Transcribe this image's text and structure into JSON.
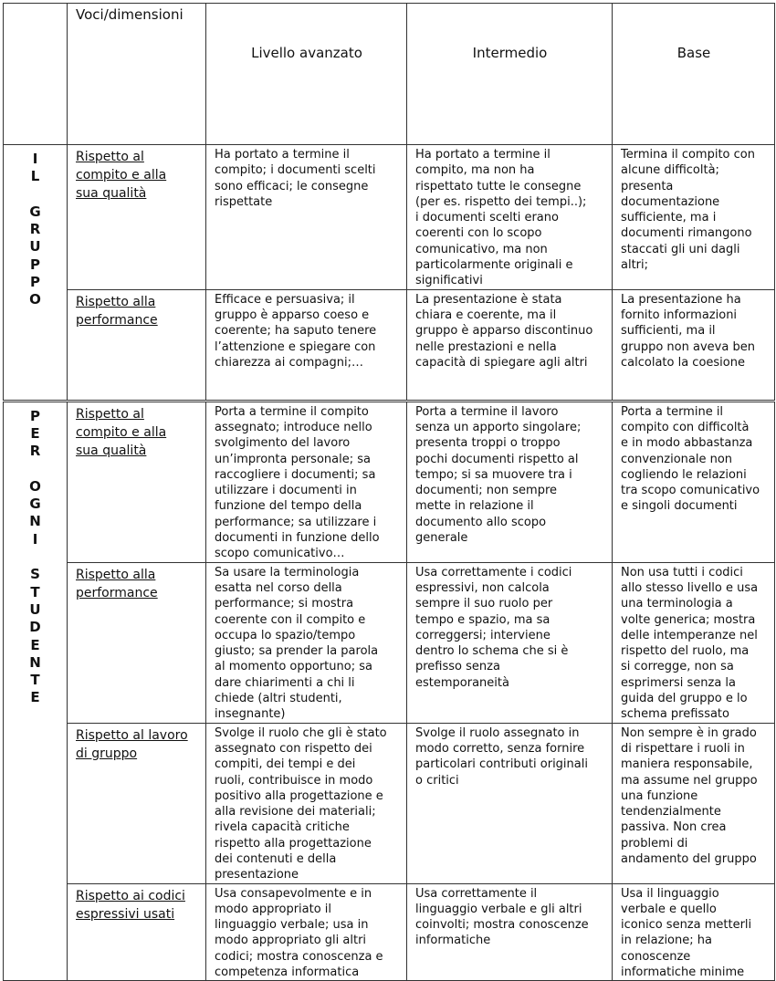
{
  "header": {
    "voci": "Voci/dimensioni",
    "levels": [
      "Livello avanzato",
      "Intermedio",
      "Base"
    ]
  },
  "groups": [
    {
      "label": "I\nL\n\nG\nR\nU\nP\nP\nO",
      "rows": [
        {
          "dimension": "Rispetto al\ncompito e alla\nsua qualità",
          "cells": [
            "Ha  portato a termine il\ncompito; i documenti scelti\nsono efficaci; le consegne\nrispettate",
            "Ha portato a termine il\ncompito, ma non ha\nrispettato tutte le consegne\n(per es. rispetto dei tempi..);\ni documenti scelti erano\ncoerenti con lo scopo\ncomunicativo, ma non\nparticolarmente originali e\nsignificativi",
            "Termina il compito con\nalcune difficoltà;\npresenta\ndocumentazione\nsufficiente, ma i\ndocumenti rimangono\nstaccati gli uni dagli\naltri;"
          ]
        },
        {
          "dimension": "Rispetto alla\nperformance",
          "cells": [
            "Efficace e persuasiva; il\ngruppo è apparso coeso e\ncoerente; ha saputo tenere\nl’attenzione e spiegare con\nchiarezza ai compagni;…",
            "La presentazione è stata\nchiara e coerente, ma il\ngruppo è apparso discontinuo\nnelle prestazioni e nella\ncapacità di spiegare agli altri",
            "La presentazione ha\nfornito informazioni\nsufficienti, ma il\ngruppo non aveva ben\ncalcolato la coesione"
          ]
        }
      ]
    },
    {
      "label": "P\nE\nR\n\nO\nG\nN\nI\n\nS\nT\nU\nD\nE\nN\nT\nE",
      "rows": [
        {
          "dimension": "Rispetto al\ncompito e alla\nsua qualità",
          "cells": [
            "Porta a termine il compito\nassegnato; introduce nello\nsvolgimento del lavoro\nun’impronta personale; sa\nraccogliere i documenti; sa\nutilizzare i  documenti in\nfunzione del tempo della\nperformance; sa utilizzare i\ndocumenti in funzione dello\nscopo comunicativo…",
            "Porta a termine il lavoro\nsenza un apporto singolare;\npresenta troppi o troppo\npochi documenti rispetto al\ntempo; si sa muovere tra i\ndocumenti; non sempre\nmette in relazione il\ndocumento allo scopo\ngenerale",
            "Porta a termine il\ncompito con difficoltà\ne in modo abbastanza\nconvenzionale non\ncogliendo le relazioni\ntra scopo comunicativo\ne singoli documenti"
          ]
        },
        {
          "dimension": "Rispetto alla\nperformance",
          "cells": [
            "Sa usare la terminologia\nesatta nel corso della\nperformance; si mostra\ncoerente con il compito e\noccupa lo spazio/tempo\ngiusto; sa prender la parola\nal momento opportuno; sa\ndare chiarimenti a chi li\nchiede (altri studenti,\ninsegnante)",
            "Usa correttamente i codici\nespressivi, non calcola\nsempre il suo ruolo per\ntempo e spazio, ma sa\ncorreggersi; interviene\ndentro lo schema che si è\nprefisso senza\nestemporaneità",
            "Non usa tutti i codici\nallo stesso livello e usa\nuna terminologia a\nvolte generica; mostra\ndelle intemperanze nel\nrispetto del ruolo, ma\nsi corregge, non sa\nesprimersi senza la\nguida del gruppo e lo\nschema prefissato"
          ]
        },
        {
          "dimension": "Rispetto al lavoro\ndi gruppo",
          "cells": [
            "Svolge il ruolo che gli è stato\nassegnato con rispetto dei\ncompiti, dei tempi e dei\nruoli, contribuisce in modo\npositivo alla progettazione e\nalla revisione dei materiali;\nrivela capacità critiche\nrispetto alla progettazione\ndei contenuti e della\npresentazione",
            "Svolge il ruolo assegnato in\nmodo corretto, senza fornire\nparticolari contributi originali\no critici",
            "Non sempre è in grado\ndi rispettare i ruoli in\nmaniera responsabile,\nma assume nel gruppo\nuna funzione\ntendenzialmente\npassiva. Non crea\nproblemi di\nandamento del gruppo"
          ]
        },
        {
          "dimension": "Rispetto ai codici\nespressivi usati",
          "cells": [
            "Usa consapevolmente e in\nmodo appropriato il\nlinguaggio verbale; usa in\nmodo appropriato gli altri\ncodici; mostra conoscenza e\ncompetenza informatica",
            "Usa correttamente il\nlinguaggio verbale e gli altri\ncoinvolti; mostra conoscenze\ninformatiche",
            "Usa il linguaggio\nverbale e quello\niconico senza metterli\nin relazione; ha\nconoscenze\ninformatiche minime"
          ]
        }
      ]
    }
  ]
}
